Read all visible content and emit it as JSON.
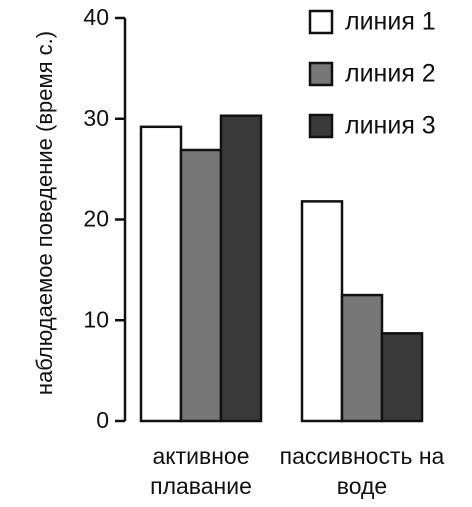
{
  "chart_data": {
    "type": "bar",
    "y_label": "наблюдаемое поведение (время с.)",
    "categories": [
      "активное плавание",
      "пассивность на воде"
    ],
    "series": [
      {
        "name": "линия 1",
        "color": "#ffffff",
        "values": [
          29.2,
          21.8
        ]
      },
      {
        "name": "линия 2",
        "color": "#777777",
        "values": [
          26.9,
          12.5
        ]
      },
      {
        "name": "линия 3",
        "color": "#3a3a3a",
        "values": [
          30.3,
          8.7
        ]
      }
    ],
    "ylim": [
      0,
      40
    ],
    "yticks": [
      0,
      10,
      20,
      30,
      40
    ],
    "legend": "upper right"
  }
}
